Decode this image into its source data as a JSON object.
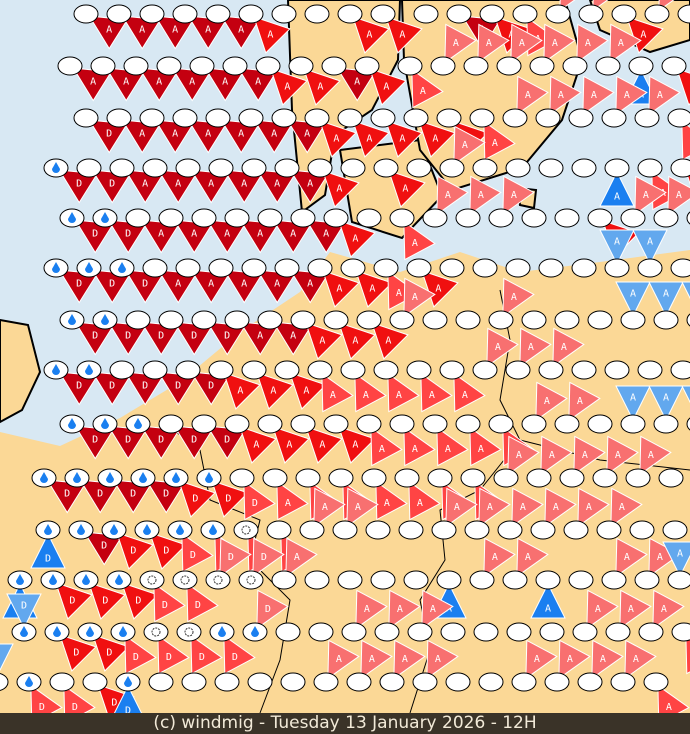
{
  "footer": {
    "credit": "(c) windmig - Tuesday 13 January 2026 - 12H"
  },
  "colors": {
    "sea": "#d8e8f3",
    "land": "#fbd896",
    "border": "#000000",
    "levels": {
      "1": "#f87070",
      "2": "#ff4444",
      "3": "#f01010",
      "4": "#c40010",
      "b": "#1a7ff0",
      "c": "#62a8ee"
    }
  },
  "legend": {
    "D": "D",
    "A": "A",
    "icons": {
      "w": "rain-drop-icon",
      "s": "cloud-symbol-icon"
    }
  },
  "markers": [
    "4A 4A 4A 4A 4A 3A 0 0 3A 3A 0 4A 3A 2A 1A 1A 3A 1A 2A 1A 3A",
    "4A 4A 4A 4A 4A 4A 3A 3A 4A 3A 2A 1A 1A 1A 1A 1A 1A bA 3A 2A 1A",
    "4D 4A 4A 4A 4A 4A 4A 3A 3A 3A 3A 3A 2A 1A 1A 1A 1A 1A 2A bA bA",
    "4Dw 4D 4A 4A 4A 4A 4A 4A 3A 0 3A 0 1A 0 0 0 0 bA 2A 3A cA",
    "4Dw 4Dw 4A 4A 4A 4A 4A 4A 3A 0 2A 1A 1A 1A 0 0 3A 1A 1A 1A cA",
    "4Dw 4Dw 4Dw 4A 4A 4A 4A 4A 3A 3A 2A 3A 0 0 0 0 0 cA cA 0 0",
    "4Dw 4Dw 4D 4D 4D 4A 4A 3A 3A 3A 1A 0 0 1A 0 0 0 cA cA cA cA",
    "4Dw 4Dw 4D 4D 4D 3A 3A 3A 2A 2A 2A 2A 2A 1A 1A 1A 0 0 0 0 0",
    "4Dw 4Dw 4Dw 4D 4D 3A 3A 3A 3A 2A 2A 2A 2A 2A 1A 1A 0 cA cA cA cA",
    "4Dw 4Dw 4Dw 4Dw 3Dw 3Dw 2D 2A 2A 2A 2A 2A 2A 2A 1A 1A 1A 1A 1A 0 0",
    "bDw 4Dw 3Dw 3Dw 2Dw 2Dw 2Ds 2D 1A 1A 0 0 1A 1A 1A 1A 1A 1A 0 0 0",
    "bDw 3Dw 3Dw 3Dw 2Ds 2Ds 1Ds 1Ds 1A 0 0 0 0 bA 1A 1A bA 0 1A 1A cA",
    "cDw 3Dw 3Dw 2Dw 2Ds 2Ds 2Dw 1Dw 0 0 1A 1A 1A 0 0 0 0 1A 1A 1A 2A",
    "cDw 2Dw 2D 3D bDw 0 0 0 0 0 1A 1A 1A 1A 0 0 1A 1A 1A 1A 2A"
  ]
}
